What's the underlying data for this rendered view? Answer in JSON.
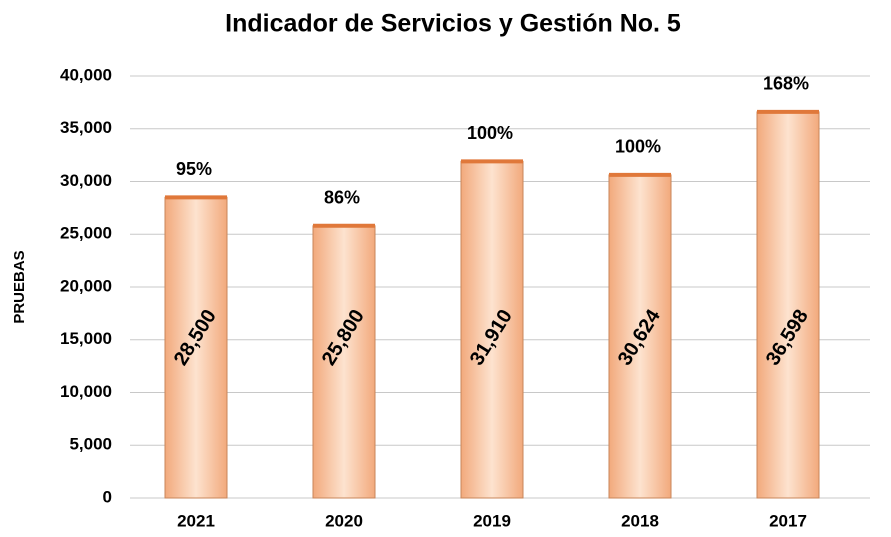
{
  "chart_data": {
    "type": "bar",
    "title": "Indicador  de Servicios  y Gestión  No. 5",
    "y_label": "PRUEBAS",
    "categories": [
      "2021",
      "2020",
      "2019",
      "2018",
      "2017"
    ],
    "values": [
      28500,
      25800,
      31910,
      30624,
      36598
    ],
    "value_labels": [
      "28,500",
      "25,800",
      "31,910",
      "30,624",
      "36,598"
    ],
    "annotations": [
      "95%",
      "86%",
      "100%",
      "100%",
      "168%"
    ],
    "color": "#f6c3a0",
    "ylim": [
      0,
      40000
    ],
    "yticks": [
      0,
      {
        "value": 5000,
        "label": "5,000"
      },
      {
        "value": 10000,
        "label": "10,000"
      },
      {
        "value": 15000,
        "label": "15,000"
      },
      {
        "value": 20000,
        "label": "20,000"
      },
      {
        "value": 25000,
        "label": "25,000"
      },
      {
        "value": 30000,
        "label": "30,000"
      },
      {
        "value": 35000,
        "label": "35,000"
      },
      {
        "value": 40000,
        "label": "40,000"
      }
    ],
    "grid": true
  }
}
